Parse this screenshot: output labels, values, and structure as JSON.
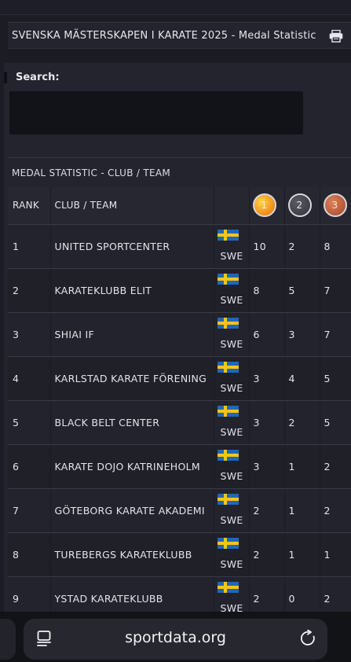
{
  "header": {
    "title": "SVENSKA MÄSTERSKAPEN I KARATE 2025 - Medal Statistic",
    "print_icon": "printer-icon"
  },
  "search": {
    "label": "Search:",
    "value": "",
    "placeholder": ""
  },
  "section": {
    "title": "MEDAL STATISTIC - CLUB / TEAM"
  },
  "table": {
    "columns": {
      "rank": "RANK",
      "club": "CLUB / TEAM",
      "nation": "",
      "gold": "1",
      "silver": "2",
      "bronze": "3"
    },
    "rows": [
      {
        "rank": "1",
        "club": "UNITED SPORTCENTER",
        "nation": "SWE",
        "gold": "10",
        "silver": "2",
        "bronze": "8"
      },
      {
        "rank": "2",
        "club": "KARATEKLUBB ELIT",
        "nation": "SWE",
        "gold": "8",
        "silver": "5",
        "bronze": "7"
      },
      {
        "rank": "3",
        "club": "SHIAI IF",
        "nation": "SWE",
        "gold": "6",
        "silver": "3",
        "bronze": "7"
      },
      {
        "rank": "4",
        "club": "KARLSTAD KARATE FÖRENING",
        "nation": "SWE",
        "gold": "3",
        "silver": "4",
        "bronze": "5"
      },
      {
        "rank": "5",
        "club": "BLACK BELT CENTER",
        "nation": "SWE",
        "gold": "3",
        "silver": "2",
        "bronze": "5"
      },
      {
        "rank": "6",
        "club": "KARATE DOJO KATRINEHOLM",
        "nation": "SWE",
        "gold": "3",
        "silver": "1",
        "bronze": "2"
      },
      {
        "rank": "7",
        "club": "GÖTEBORG KARATE AKADEMI",
        "nation": "SWE",
        "gold": "2",
        "silver": "1",
        "bronze": "2"
      },
      {
        "rank": "8",
        "club": "TUREBERGS KARATEKLUBB",
        "nation": "SWE",
        "gold": "2",
        "silver": "1",
        "bronze": "1"
      },
      {
        "rank": "9",
        "club": "YSTAD KARATEKLUBB",
        "nation": "SWE",
        "gold": "2",
        "silver": "0",
        "bronze": "2"
      }
    ]
  },
  "browser": {
    "url": "sportdata.org",
    "reader_icon": "reader-mode-icon",
    "reload_icon": "reload-icon"
  },
  "colors": {
    "background": "#1c1d24",
    "panel": "#23242d",
    "gold": "#f08a18",
    "silver": "#3f4047",
    "bronze": "#b65838",
    "flag_blue": "#1e68b9",
    "flag_yellow": "#f5c518"
  }
}
